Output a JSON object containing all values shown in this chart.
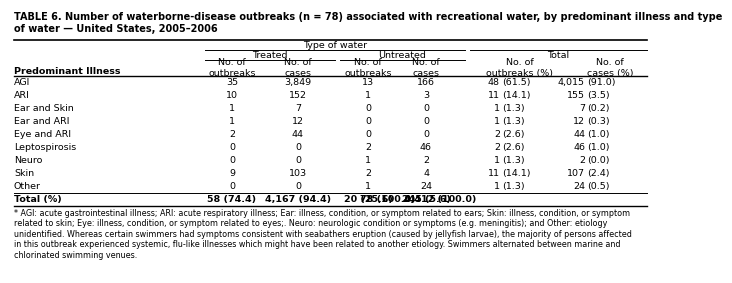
{
  "title": "TABLE 6. Number of waterborne-disease outbreaks (n = 78) associated with recreational water, by predominant illness and type\nof water — United States, 2005–2006",
  "col_header_row1": "Type of water",
  "col_header_row2": [
    "Treated",
    "Untreated",
    "Total"
  ],
  "col_header_row3": [
    "No. of\noutbreaks",
    "No. of\ncases",
    "No. of\noutbreaks",
    "No. of\ncases",
    "No. of\noutbreaks (%)",
    "No. of\ncases (%)"
  ],
  "row_label_header": "Predominant Illness",
  "rows": [
    [
      "AGI",
      "35",
      "3,849",
      "13",
      "166",
      "48",
      "(61.5)",
      "4,015",
      "(91.0)"
    ],
    [
      "ARI",
      "10",
      "152",
      "1",
      "3",
      "11",
      "(14.1)",
      "155",
      "(3.5)"
    ],
    [
      "Ear and Skin",
      "1",
      "7",
      "0",
      "0",
      "1",
      "(1.3)",
      "7",
      "(0.2)"
    ],
    [
      "Ear and ARI",
      "1",
      "12",
      "0",
      "0",
      "1",
      "(1.3)",
      "12",
      "(0.3)"
    ],
    [
      "Eye and ARI",
      "2",
      "44",
      "0",
      "0",
      "2",
      "(2.6)",
      "44",
      "(1.0)"
    ],
    [
      "Leptospirosis",
      "0",
      "0",
      "2",
      "46",
      "2",
      "(2.6)",
      "46",
      "(1.0)"
    ],
    [
      "Neuro",
      "0",
      "0",
      "1",
      "2",
      "1",
      "(1.3)",
      "2",
      "(0.0)"
    ],
    [
      "Skin",
      "9",
      "103",
      "2",
      "4",
      "11",
      "(14.1)",
      "107",
      "(2.4)"
    ],
    [
      "Other",
      "0",
      "0",
      "1",
      "24",
      "1",
      "(1.3)",
      "24",
      "(0.5)"
    ]
  ],
  "total_row": [
    "Total (%)",
    "58 (74.4)",
    "4,167 (94.4)",
    "20 (25.6)",
    "245 (5.6)",
    "78 (100.0)",
    "4,412 (100.0)"
  ],
  "footnote": "* AGI: acute gastrointestinal illness; ARI: acute respiratory illness; Ear: illness, condition, or symptom related to ears; Skin: illness, condition, or symptom\nrelated to skin; Eye: illness, condition, or symptom related to eyes;. Neuro: neurologic condition or symptoms (e.g. meningitis); and Other: etiology\nunidentified. Whereas certain swimmers had symptoms consistent with seabathers eruption (caused by jellyfish larvae), the majority of persons affected\nin this outbreak experienced systemic, flu-like illnesses which might have been related to another etiology. Swimmers alternated between marine and\nchlorinated swimming venues.",
  "bg_color": "#ffffff",
  "text_color": "#000000",
  "fs_title": 7.0,
  "fs_header": 6.8,
  "fs_data": 6.8,
  "fs_footnote": 5.8
}
